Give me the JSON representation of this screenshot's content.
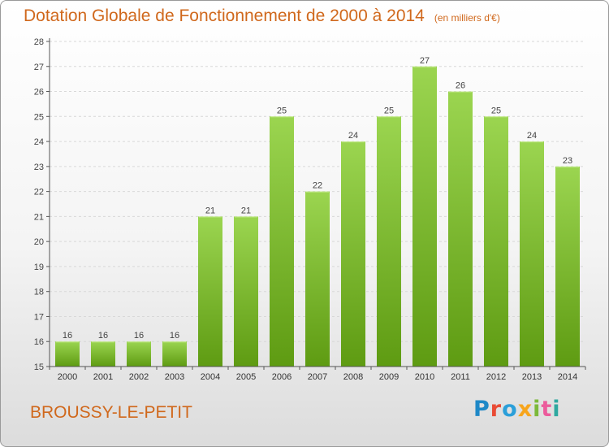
{
  "title": "Dotation Globale de Fonctionnement de 2000 à 2014",
  "subtitle": "(en milliers d'€)",
  "commune": "BROUSSY-LE-PETIT",
  "logo": "Proxiti",
  "colors": {
    "title": "#d0681c",
    "bar_top": "#9bd550",
    "bar_bottom": "#5e9b12",
    "axis": "#555555",
    "grid": "#d8d8d8"
  },
  "chart_data": {
    "type": "bar",
    "categories": [
      "2000",
      "2001",
      "2002",
      "2003",
      "2004",
      "2005",
      "2006",
      "2007",
      "2008",
      "2009",
      "2010",
      "2011",
      "2012",
      "2013",
      "2014"
    ],
    "values": [
      16,
      16,
      16,
      16,
      21,
      21,
      25,
      22,
      24,
      25,
      27,
      26,
      25,
      24,
      23
    ],
    "title": "Dotation Globale de Fonctionnement de 2000 à 2014",
    "xlabel": "",
    "ylabel": "",
    "ylim": [
      15,
      28
    ],
    "yticks": [
      15,
      16,
      17,
      18,
      19,
      20,
      21,
      22,
      23,
      24,
      25,
      26,
      27,
      28
    ],
    "grid": true,
    "data_labels": true
  }
}
